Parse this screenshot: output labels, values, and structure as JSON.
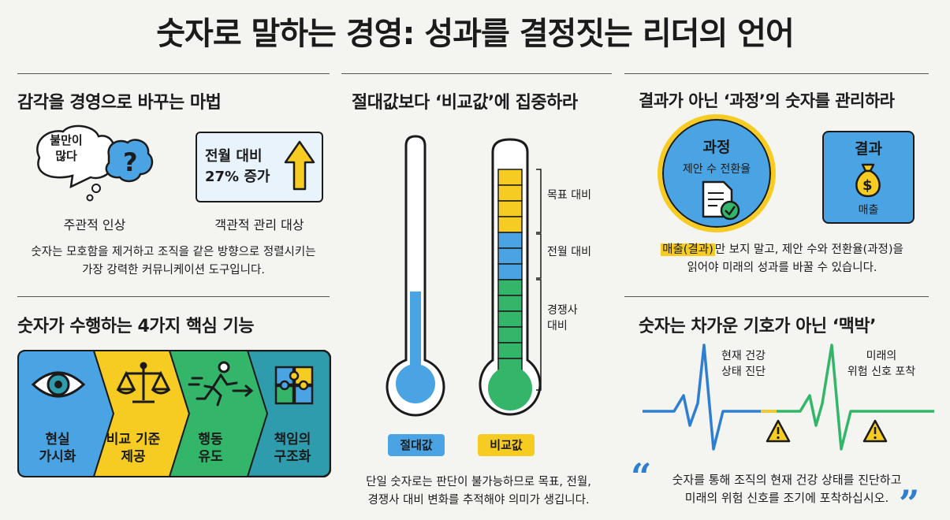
{
  "title": "숫자로 말하는 경영: 성과를 결정짓는 리더의 언어",
  "sec1": {
    "heading": "감각을 경영으로 바꾸는 마법",
    "bubble": "불만이\n많다",
    "card_line1": "전월 대비",
    "card_line2": "27% 증가",
    "cap_left": "주관적 인상",
    "cap_right": "객관적 관리 대상",
    "body_line1": "숫자는 모호함을 제거하고 조직을 같은 방향으로 정렬시키는",
    "body_line2": "가장 강력한 커뮤니케이션 도구입니다."
  },
  "sec2": {
    "heading": "숫자가 수행하는 4가지 핵심 기능",
    "steps": [
      {
        "label": "현실\n가시화",
        "icon": "eye-icon",
        "color": "#4aa3e3"
      },
      {
        "label": "비교 기준\n제공",
        "icon": "scales-icon",
        "color": "#f6cc22"
      },
      {
        "label": "행동\n유도",
        "icon": "running-person-icon",
        "color": "#33b56a"
      },
      {
        "label": "책임의\n구조화",
        "icon": "puzzle-icon",
        "color": "#2f9cae"
      }
    ]
  },
  "sec3": {
    "heading": "절대값보다 ‘비교값’에 집중하라",
    "left_label": "절대값",
    "right_label": "비교값",
    "scale_labels": [
      "목표 대비",
      "전월 대비",
      "경쟁사\n대비"
    ],
    "body_line1": "단일 숫자로는 판단이 불가능하므로 목표, 전월,",
    "body_line2": "경쟁사 대비 변화를 추적해야 의미가 생깁니다."
  },
  "sec4": {
    "heading": "결과가 아닌 ‘과정’의 숫자를 관리하라",
    "process_title": "과정",
    "process_sub": "제안 수 전환율",
    "result_title": "결과",
    "result_sub": "매출",
    "body_highlight": "매출(결과)",
    "body_line1_rest": "만 보지 말고, 제안 수와 전환율(과정)을",
    "body_line2": "읽어야 미래의 성과를 바꿀 수 있습니다."
  },
  "sec5": {
    "heading": "숫자는 차가운 기호가 아닌 ‘맥박’",
    "label_left": "현재 건강\n상태 진단",
    "label_right": "미래의\n위험 신호 포착",
    "quote_line1": "숫자를 통해 조직의 현재 건강 상태를 진단하고",
    "quote_line2": "미래의 위험 신호를 조기에 포착하십시오."
  },
  "colors": {
    "blue": "#4aa3e3",
    "yellow": "#f6cc22",
    "green": "#33b56a",
    "teal": "#2f9cae",
    "dark": "#1b1b1b"
  }
}
